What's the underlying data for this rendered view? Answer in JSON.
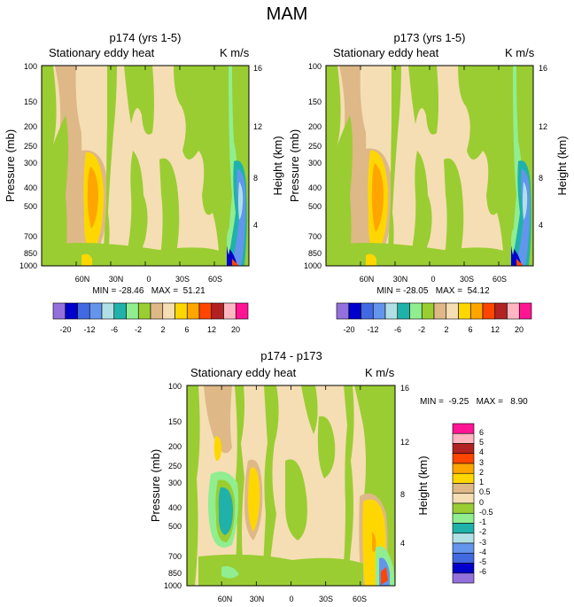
{
  "figure": {
    "title": "MAM"
  },
  "palettes": {
    "main": [
      "#9370db",
      "#0000cd",
      "#4169e1",
      "#6495ed",
      "#b0e0e6",
      "#20b2aa",
      "#90ee90",
      "#9acd32",
      "#deb887",
      "#f5deb3",
      "#ffd700",
      "#ffa500",
      "#ff4500",
      "#b22222",
      "#ffb6c1",
      "#ff1493"
    ],
    "diff": [
      "#9370db",
      "#0000cd",
      "#4169e1",
      "#6495ed",
      "#b0e0e6",
      "#20b2aa",
      "#90ee90",
      "#9acd32",
      "#f5deb3",
      "#deb887",
      "#ffd700",
      "#ffa500",
      "#ff4500",
      "#b22222",
      "#ffb6c1",
      "#ff1493"
    ]
  },
  "chart_data": [
    {
      "type": "heatmap",
      "title": "p174 (yrs 1-5)",
      "subtitle_left": "Stationary eddy heat",
      "units": "K m/s",
      "ylabel": "Pressure (mb)",
      "ylabel_right": "Height (km)",
      "xticks": [
        "60N",
        "30N",
        "0",
        "30S",
        "60S"
      ],
      "xtick_lats": [
        60,
        30,
        0,
        -30,
        -60
      ],
      "xlim": [
        90,
        -90
      ],
      "yticks": [
        "100",
        "150",
        "200",
        "250",
        "300",
        "400",
        "500",
        "700",
        "850",
        "1000"
      ],
      "yticks_right": [
        "16",
        "12",
        "8",
        "4"
      ],
      "stats": "MIN = -28.46   MAX =  51.21",
      "min": -28.46,
      "max": 51.21,
      "colorbar_labels": [
        "-20",
        "-12",
        "-6",
        "-2",
        "2",
        "6",
        "12",
        "20"
      ]
    },
    {
      "type": "heatmap",
      "title": "p173 (yrs 1-5)",
      "subtitle_left": "Stationary eddy heat",
      "units": "K m/s",
      "ylabel": "Pressure (mb)",
      "ylabel_right": "Height (km)",
      "xticks": [
        "60N",
        "30N",
        "0",
        "30S",
        "60S"
      ],
      "xtick_lats": [
        60,
        30,
        0,
        -30,
        -60
      ],
      "xlim": [
        90,
        -90
      ],
      "yticks": [
        "100",
        "150",
        "200",
        "250",
        "300",
        "400",
        "500",
        "700",
        "850",
        "1000"
      ],
      "yticks_right": [
        "16",
        "12",
        "8",
        "4"
      ],
      "stats": "MIN = -28.05   MAX =  54.12",
      "min": -28.05,
      "max": 54.12,
      "colorbar_labels": [
        "-20",
        "-12",
        "-6",
        "-2",
        "2",
        "6",
        "12",
        "20"
      ]
    },
    {
      "type": "heatmap",
      "title": "p174 - p173",
      "subtitle_left": "Stationary eddy heat",
      "units": "K m/s",
      "ylabel": "Pressure (mb)",
      "ylabel_right": "Height (km)",
      "xticks": [
        "60N",
        "30N",
        "0",
        "30S",
        "60S"
      ],
      "xtick_lats": [
        60,
        30,
        0,
        -30,
        -60
      ],
      "xlim": [
        90,
        -90
      ],
      "yticks": [
        "100",
        "150",
        "200",
        "250",
        "300",
        "400",
        "500",
        "700",
        "850",
        "1000"
      ],
      "yticks_right": [
        "16",
        "12",
        "8",
        "4"
      ],
      "stats": "MIN =  -9.25   MAX =   8.90",
      "min": -9.25,
      "max": 8.9,
      "colorbar_labels": [
        "6",
        "5",
        "4",
        "3",
        "2",
        "1",
        "0.5",
        "0",
        "-0.5",
        "-1",
        "-2",
        "-3",
        "-4",
        "-5",
        "-6"
      ]
    }
  ]
}
